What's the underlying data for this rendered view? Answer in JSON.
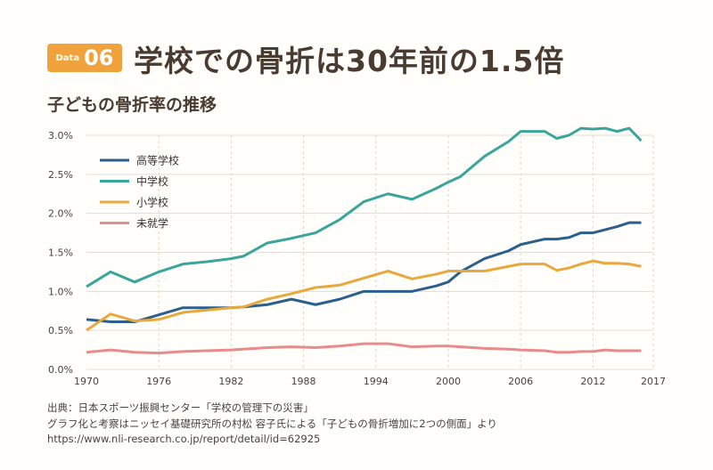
{
  "header": {
    "badge_small": "Data",
    "badge_number": "06",
    "title": "学校での骨折は30年前の1.5倍",
    "subtitle": "子どもの骨折率の推移"
  },
  "chart_data": {
    "type": "line",
    "title": "子どもの骨折率の推移",
    "xlabel": "",
    "ylabel": "",
    "xlim": [
      1970,
      2017
    ],
    "ylim": [
      0,
      3.0
    ],
    "x_ticks": [
      "1970",
      "1976",
      "1982",
      "1988",
      "1994",
      "2000",
      "2006",
      "2012",
      "2017"
    ],
    "y_ticks": [
      "0.0%",
      "0.5%",
      "1.0%",
      "1.5%",
      "2.0%",
      "2.5%",
      "3.0%"
    ],
    "grid": true,
    "legend": "top-left",
    "x": [
      1970,
      1972,
      1974,
      1976,
      1978,
      1980,
      1982,
      1983,
      1985,
      1987,
      1989,
      1991,
      1993,
      1995,
      1997,
      1999,
      2000,
      2001,
      2003,
      2005,
      2006,
      2008,
      2009,
      2010,
      2011,
      2012,
      2013,
      2014,
      2015,
      2016
    ],
    "series": [
      {
        "name": "高等学校",
        "color": "#2b5f8e",
        "values": [
          0.64,
          0.61,
          0.61,
          0.7,
          0.79,
          0.79,
          0.79,
          0.8,
          0.83,
          0.9,
          0.83,
          0.9,
          1.0,
          1.0,
          1.0,
          1.07,
          1.12,
          1.25,
          1.42,
          1.52,
          1.6,
          1.67,
          1.67,
          1.69,
          1.75,
          1.75,
          1.79,
          1.83,
          1.88,
          1.88
        ]
      },
      {
        "name": "中学校",
        "color": "#3aa59b",
        "values": [
          1.06,
          1.25,
          1.12,
          1.25,
          1.35,
          1.38,
          1.42,
          1.45,
          1.62,
          1.68,
          1.75,
          1.92,
          2.15,
          2.25,
          2.18,
          2.32,
          2.4,
          2.47,
          2.73,
          2.92,
          3.05,
          3.05,
          2.96,
          3.0,
          3.09,
          3.08,
          3.09,
          3.05,
          3.09,
          2.93
        ]
      },
      {
        "name": "小学校",
        "color": "#e9a83c",
        "values": [
          0.5,
          0.71,
          0.62,
          0.64,
          0.73,
          0.76,
          0.79,
          0.8,
          0.9,
          0.97,
          1.05,
          1.08,
          1.17,
          1.26,
          1.16,
          1.22,
          1.26,
          1.26,
          1.26,
          1.32,
          1.35,
          1.35,
          1.27,
          1.3,
          1.35,
          1.39,
          1.36,
          1.36,
          1.35,
          1.32
        ]
      },
      {
        "name": "未就学",
        "color": "#e98a8b",
        "values": [
          0.22,
          0.25,
          0.22,
          0.21,
          0.23,
          0.24,
          0.25,
          0.26,
          0.28,
          0.29,
          0.28,
          0.3,
          0.33,
          0.33,
          0.29,
          0.3,
          0.3,
          0.29,
          0.27,
          0.26,
          0.25,
          0.24,
          0.22,
          0.22,
          0.23,
          0.23,
          0.25,
          0.24,
          0.24,
          0.24
        ]
      }
    ]
  },
  "source": {
    "line1": "出典：日本スポーツ振興センター「学校の管理下の災害」",
    "line2": "グラフ化と考察はニッセイ基礎研究所の村松 容子氏による「子どもの骨折増加に2つの側面」より",
    "line3": "https://www.nli-research.co.jp/report/detail/id=62925"
  }
}
